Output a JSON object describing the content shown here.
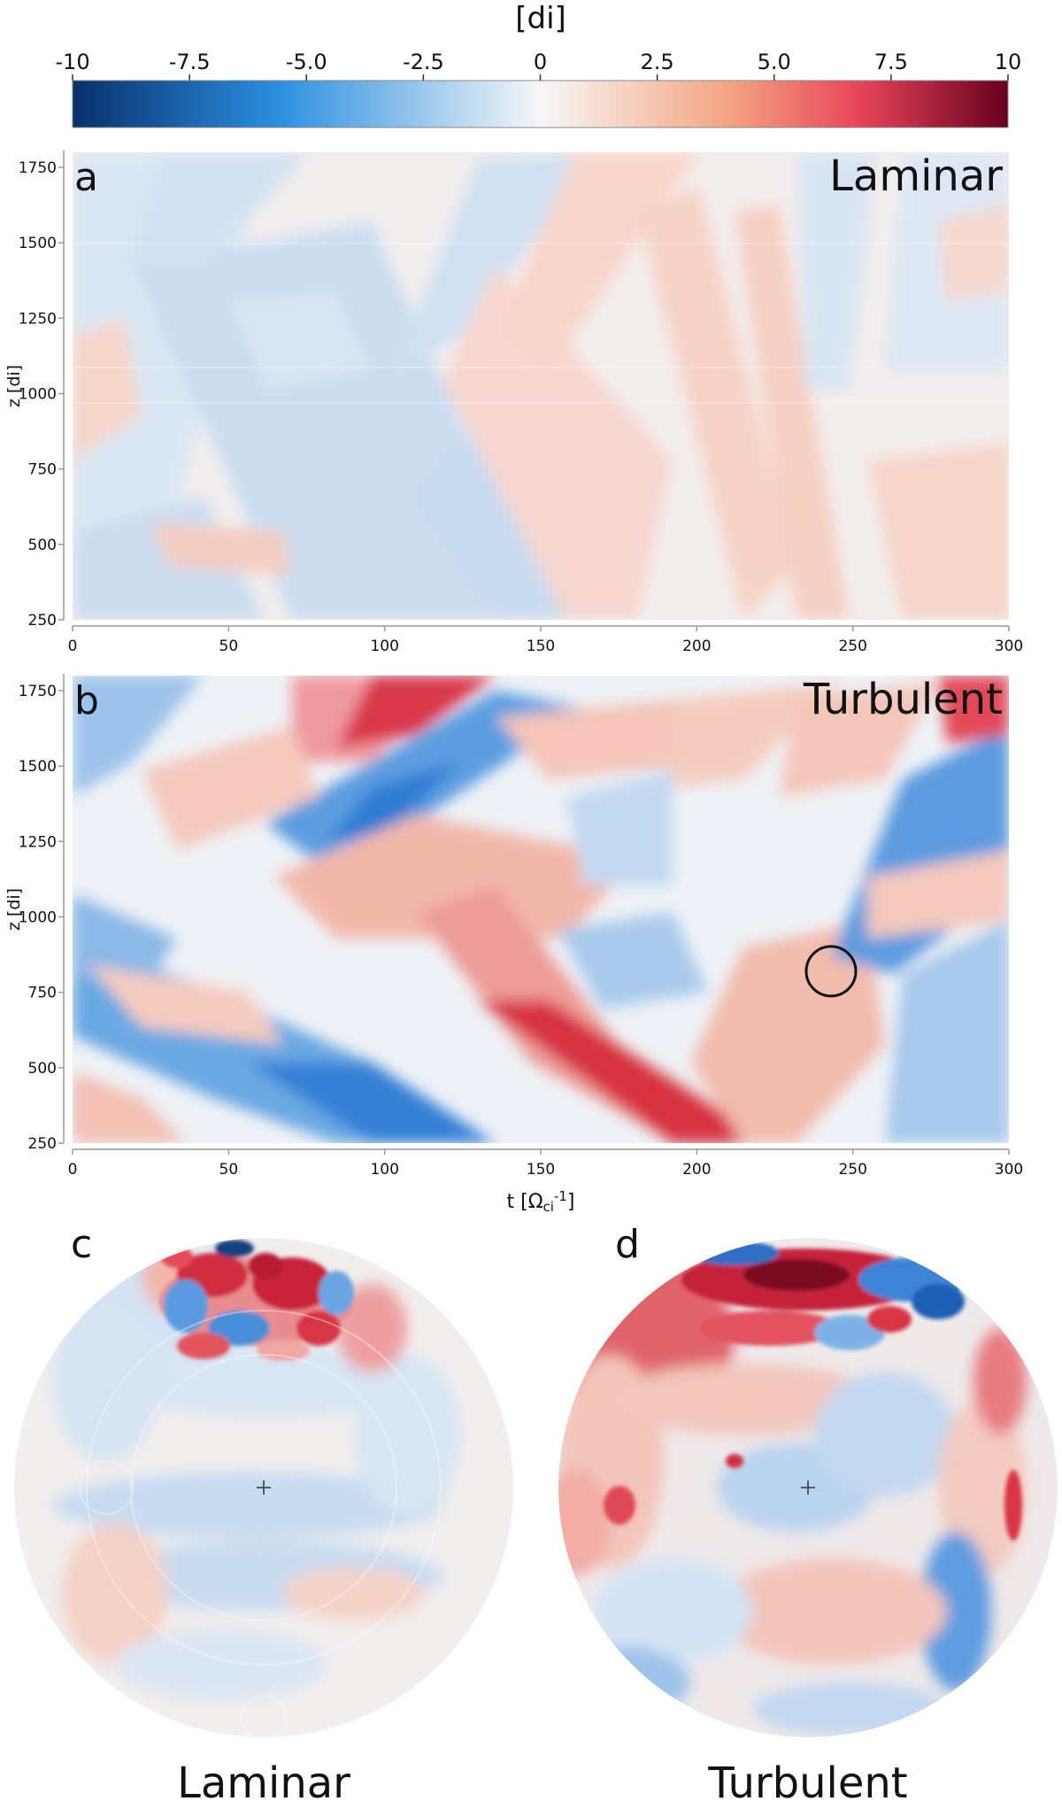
{
  "colorbar": {
    "label": "[di]",
    "ticks": [
      "-10",
      "-7.5",
      "-5.0",
      "-2.5",
      "0",
      "2.5",
      "5.0",
      "7.5",
      "10"
    ],
    "range": [
      -10,
      10
    ],
    "colormap": [
      "#08306b",
      "#2b8fe0",
      "#f7f7f7",
      "#f4a582",
      "#e8455a",
      "#67001f"
    ]
  },
  "panels": [
    {
      "letter": "a",
      "title": "Laminar",
      "ylabel": "z [di]",
      "yticks": [
        "250",
        "500",
        "750",
        "1000",
        "1250",
        "1500",
        "1750"
      ],
      "xticks": [
        "0",
        "50",
        "100",
        "150",
        "200",
        "250",
        "300"
      ]
    },
    {
      "letter": "b",
      "title": "Turbulent",
      "ylabel": "z [di]",
      "yticks": [
        "250",
        "500",
        "750",
        "1000",
        "1250",
        "1500",
        "1750"
      ],
      "xticks": [
        "0",
        "50",
        "100",
        "150",
        "200",
        "250",
        "300"
      ],
      "xlabel": "t [Ω",
      "xlabel_sub": "ci",
      "xlabel_sup": "-1",
      "xlabel_end": "]",
      "marker": {
        "t": 243,
        "z": 820
      }
    }
  ],
  "discs": [
    {
      "letter": "c",
      "title": "Laminar"
    },
    {
      "letter": "d",
      "title": "Turbulent"
    }
  ],
  "chart_data": [
    {
      "type": "heatmap",
      "title": "Laminar",
      "xlabel": "t [Ωci-1]",
      "ylabel": "z [di]",
      "xlim": [
        0,
        300
      ],
      "ylim": [
        250,
        1800
      ],
      "color_range": [
        -10,
        10
      ],
      "units": "[di]"
    },
    {
      "type": "heatmap",
      "title": "Turbulent",
      "xlabel": "t [Ωci-1]",
      "ylabel": "z [di]",
      "xlim": [
        0,
        300
      ],
      "ylim": [
        250,
        1800
      ],
      "color_range": [
        -10,
        10
      ],
      "units": "[di]",
      "annotation": "circle at t≈243, z≈820"
    },
    {
      "type": "heatmap",
      "title": "Laminar",
      "projection": "polar disc",
      "color_range": [
        -10,
        10
      ]
    },
    {
      "type": "heatmap",
      "title": "Turbulent",
      "projection": "polar disc",
      "color_range": [
        -10,
        10
      ]
    }
  ]
}
